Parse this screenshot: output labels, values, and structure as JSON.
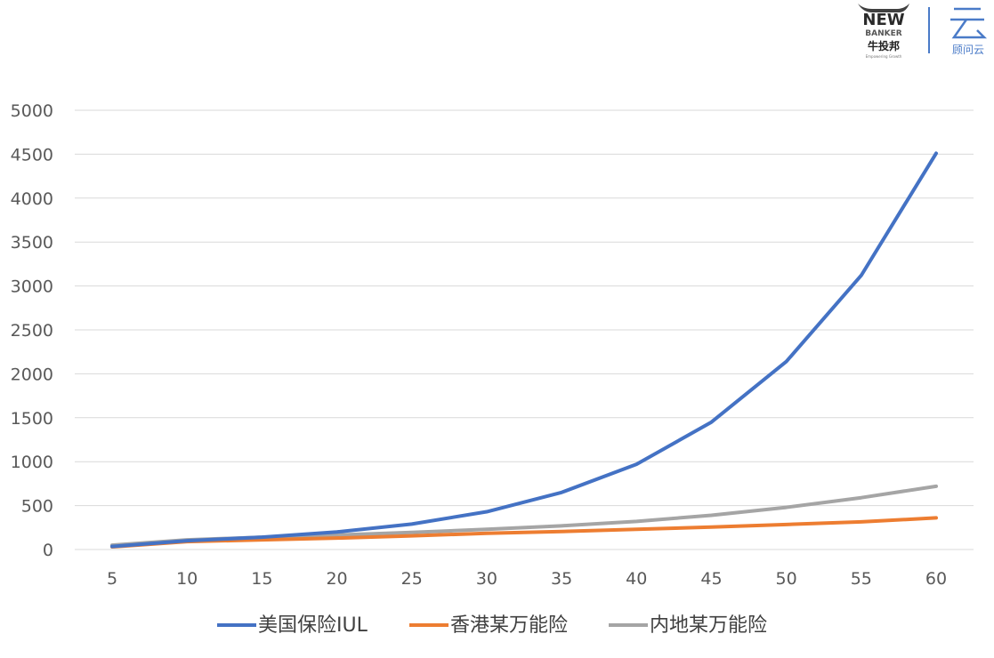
{
  "logos": {
    "left_main": "NEW",
    "left_sub": "BANKER",
    "left_cn": "牛投邦",
    "left_tagline": "Empowering Growth",
    "right_cn": "顾问云"
  },
  "chart_data": {
    "type": "line",
    "title": "",
    "xlabel": "",
    "ylabel": "",
    "x": [
      5,
      10,
      15,
      20,
      25,
      30,
      35,
      40,
      45,
      50,
      55,
      60
    ],
    "ylim": [
      0,
      5000
    ],
    "yticks": [
      0,
      500,
      1000,
      1500,
      2000,
      2500,
      3000,
      3500,
      4000,
      4500,
      5000
    ],
    "grid": true,
    "legend_position": "bottom",
    "series": [
      {
        "name": "美国保险IUL",
        "color": "#4472C4",
        "values": [
          35,
          100,
          140,
          200,
          290,
          430,
          650,
          970,
          1450,
          2140,
          3120,
          4510
        ]
      },
      {
        "name": "香港某万能险",
        "color": "#ED7D31",
        "values": [
          30,
          90,
          110,
          130,
          155,
          185,
          205,
          230,
          255,
          285,
          315,
          360
        ]
      },
      {
        "name": "内地某万能险",
        "color": "#A5A5A5",
        "values": [
          50,
          110,
          140,
          165,
          195,
          230,
          270,
          320,
          390,
          480,
          590,
          720
        ]
      }
    ]
  }
}
